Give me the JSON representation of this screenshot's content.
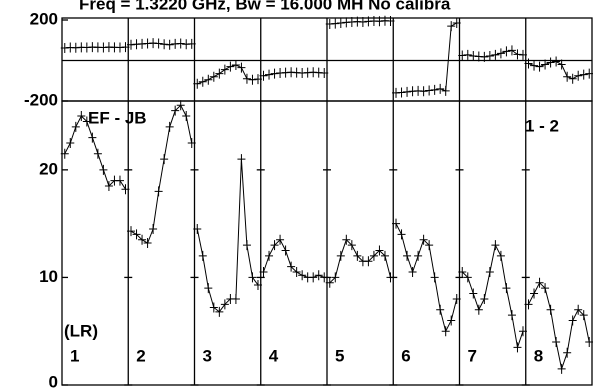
{
  "chart_data": {
    "type": "line",
    "title": "Freq = 1.3220 GHz, Bw = 16.000 MH   No calibra",
    "baseline_label": "EF - JB",
    "correlation_label": "1 - 2",
    "polarization_label": "(LR)",
    "color": "#000000",
    "phase_ylim": [
      -200,
      200
    ],
    "phase_yticks": [
      -200,
      200
    ],
    "amp_ylim": [
      0,
      26.4
    ],
    "amp_yticks": [
      0,
      10,
      20
    ],
    "panels": [
      {
        "label": "1",
        "amplitude": [
          21.5,
          22.5,
          24,
          25,
          24.5,
          23,
          21.5,
          20,
          18.5,
          19,
          19,
          18.2
        ],
        "phase": [
          62,
          64,
          63,
          65,
          64,
          66,
          65,
          64,
          66,
          65,
          64,
          66
        ]
      },
      {
        "label": "2",
        "amplitude": [
          14.3,
          14,
          13.5,
          13.2,
          14.5,
          18,
          21,
          24,
          25.5,
          26,
          25,
          22.5
        ],
        "phase": [
          78,
          80,
          82,
          84,
          86,
          84,
          80,
          78,
          82,
          84,
          80,
          82
        ]
      },
      {
        "label": "3",
        "amplitude": [
          14.5,
          12,
          9,
          7.2,
          6.8,
          7.5,
          8,
          8,
          21,
          13,
          10,
          9.3
        ],
        "phase": [
          -115,
          -105,
          -95,
          -80,
          -65,
          -45,
          -30,
          -22,
          -35,
          -90,
          -95,
          -92
        ]
      },
      {
        "label": "4",
        "amplitude": [
          10.5,
          12,
          13,
          13.5,
          12.5,
          11,
          10.5,
          10.2,
          10,
          10,
          10.2,
          10
        ],
        "phase": [
          -75,
          -70,
          -65,
          -62,
          -60,
          -58,
          -60,
          -62,
          -60,
          -58,
          -60,
          -62
        ]
      },
      {
        "label": "5",
        "amplitude": [
          9.5,
          10,
          12,
          13.5,
          13,
          12,
          11.5,
          11.5,
          12,
          12.5,
          12,
          10
        ],
        "phase": [
          180,
          182,
          185,
          188,
          190,
          192,
          190,
          193,
          195,
          194,
          196,
          195
        ]
      },
      {
        "label": "6",
        "amplitude": [
          15,
          14,
          12,
          10.5,
          12,
          13.5,
          13,
          10,
          7,
          5,
          6,
          8
        ],
        "phase": [
          -160,
          -158,
          -155,
          -152,
          -150,
          -152,
          -148,
          -145,
          -140,
          -150,
          170,
          185
        ]
      },
      {
        "label": "7",
        "amplitude": [
          10.5,
          10,
          8.5,
          7,
          8,
          10.5,
          13,
          12,
          9,
          6.5,
          3.5,
          5
        ],
        "phase": [
          25,
          28,
          22,
          20,
          18,
          22,
          28,
          35,
          45,
          50,
          30,
          28
        ]
      },
      {
        "label": "8",
        "amplitude": [
          7.5,
          8.5,
          9.5,
          9,
          7,
          4,
          1.5,
          3,
          6,
          7,
          6.5,
          4
        ],
        "phase": [
          -15,
          -25,
          -30,
          -20,
          -10,
          -5,
          -20,
          -80,
          -90,
          -75,
          -70,
          -65
        ]
      }
    ]
  }
}
